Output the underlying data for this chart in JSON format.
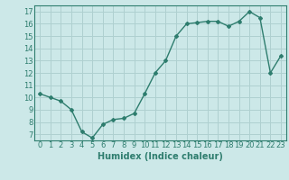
{
  "x": [
    0,
    1,
    2,
    3,
    4,
    5,
    6,
    7,
    8,
    9,
    10,
    11,
    12,
    13,
    14,
    15,
    16,
    17,
    18,
    19,
    20,
    21,
    22,
    23
  ],
  "y": [
    10.3,
    10.0,
    9.7,
    9.0,
    7.2,
    6.7,
    7.8,
    8.2,
    8.3,
    8.7,
    10.3,
    12.0,
    13.0,
    15.0,
    16.0,
    16.1,
    16.2,
    16.2,
    15.8,
    16.2,
    17.0,
    16.5,
    12.0,
    13.4
  ],
  "line_color": "#2e7d6e",
  "bg_color": "#cce8e8",
  "grid_color": "#afd0d0",
  "xlabel": "Humidex (Indice chaleur)",
  "ylim": [
    6.5,
    17.5
  ],
  "yticks": [
    7,
    8,
    9,
    10,
    11,
    12,
    13,
    14,
    15,
    16,
    17
  ],
  "xticks": [
    0,
    1,
    2,
    3,
    4,
    5,
    6,
    7,
    8,
    9,
    10,
    11,
    12,
    13,
    14,
    15,
    16,
    17,
    18,
    19,
    20,
    21,
    22,
    23
  ],
  "marker": "D",
  "marker_size": 2.0,
  "line_width": 1.0,
  "xlabel_fontsize": 7,
  "tick_fontsize": 6
}
